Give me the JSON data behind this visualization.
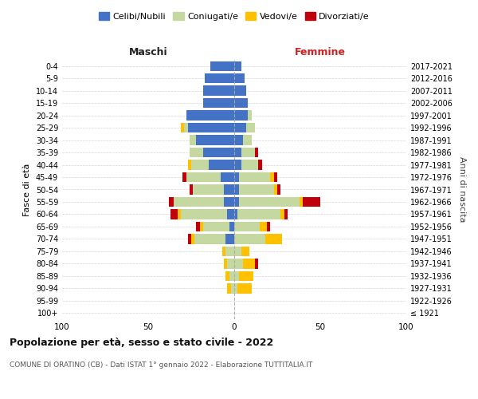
{
  "age_groups": [
    "100+",
    "95-99",
    "90-94",
    "85-89",
    "80-84",
    "75-79",
    "70-74",
    "65-69",
    "60-64",
    "55-59",
    "50-54",
    "45-49",
    "40-44",
    "35-39",
    "30-34",
    "25-29",
    "20-24",
    "15-19",
    "10-14",
    "5-9",
    "0-4"
  ],
  "birth_years": [
    "≤ 1921",
    "1922-1926",
    "1927-1931",
    "1932-1936",
    "1937-1941",
    "1942-1946",
    "1947-1951",
    "1952-1956",
    "1957-1961",
    "1962-1966",
    "1967-1971",
    "1972-1976",
    "1977-1981",
    "1982-1986",
    "1987-1991",
    "1992-1996",
    "1997-2001",
    "2002-2006",
    "2007-2011",
    "2012-2016",
    "2017-2021"
  ],
  "maschi": {
    "celibi": [
      0,
      0,
      0,
      0,
      0,
      0,
      5,
      3,
      4,
      6,
      6,
      8,
      15,
      18,
      22,
      27,
      28,
      18,
      18,
      17,
      14
    ],
    "coniugati": [
      0,
      0,
      2,
      3,
      4,
      5,
      18,
      15,
      27,
      29,
      18,
      20,
      10,
      8,
      4,
      2,
      0,
      0,
      0,
      0,
      0
    ],
    "vedovi": [
      0,
      0,
      2,
      2,
      2,
      2,
      2,
      2,
      2,
      0,
      0,
      0,
      2,
      0,
      0,
      2,
      0,
      0,
      0,
      0,
      0
    ],
    "divorziati": [
      0,
      0,
      0,
      0,
      0,
      0,
      2,
      2,
      4,
      3,
      2,
      2,
      0,
      0,
      0,
      0,
      0,
      0,
      0,
      0,
      0
    ]
  },
  "femmine": {
    "nubili": [
      0,
      0,
      0,
      0,
      0,
      0,
      0,
      0,
      2,
      3,
      3,
      3,
      4,
      4,
      5,
      7,
      8,
      8,
      7,
      6,
      4
    ],
    "coniugate": [
      0,
      0,
      2,
      3,
      5,
      4,
      18,
      15,
      25,
      35,
      20,
      18,
      10,
      8,
      5,
      5,
      2,
      0,
      0,
      0,
      0
    ],
    "vedove": [
      0,
      0,
      8,
      8,
      7,
      5,
      10,
      4,
      2,
      2,
      2,
      2,
      0,
      0,
      0,
      0,
      0,
      0,
      0,
      0,
      0
    ],
    "divorziate": [
      0,
      0,
      0,
      0,
      2,
      0,
      0,
      2,
      2,
      10,
      2,
      2,
      2,
      2,
      0,
      0,
      0,
      0,
      0,
      0,
      0
    ]
  },
  "colors": {
    "celibi_nubili": "#4472c4",
    "coniugati": "#c5d8a0",
    "vedovi": "#ffc000",
    "divorziati": "#c0000a"
  },
  "title": "Popolazione per età, sesso e stato civile - 2022",
  "subtitle": "COMUNE DI ORATINO (CB) - Dati ISTAT 1° gennaio 2022 - Elaborazione TUTTITALIA.IT",
  "xlabel_maschi": "Maschi",
  "xlabel_femmine": "Femmine",
  "ylabel": "Fasce di età",
  "ylabel_right": "Anni di nascita",
  "xlim": 100,
  "background_color": "#ffffff",
  "grid_color": "#cccccc",
  "legend_labels": [
    "Celibi/Nubili",
    "Coniugati/e",
    "Vedovi/e",
    "Divorziati/e"
  ]
}
